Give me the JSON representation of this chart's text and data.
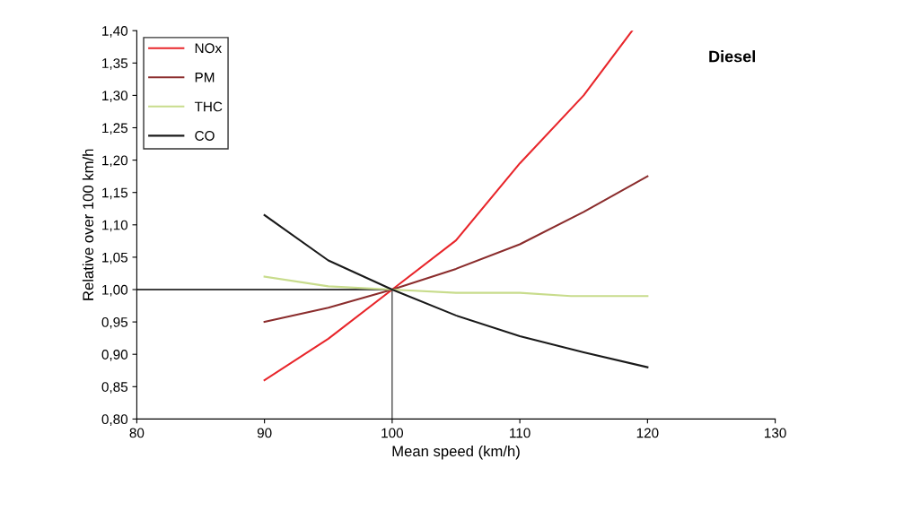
{
  "chart_data": {
    "type": "line",
    "xlabel": "Mean speed (km/h)",
    "ylabel": "Relative over 100 km/h",
    "annotations": [
      "Diesel"
    ],
    "xlim": [
      80,
      130
    ],
    "xticks": [
      80,
      90,
      100,
      110,
      120,
      130
    ],
    "ylim": [
      0.8,
      1.4
    ],
    "yticks": [
      {
        "value": 0.8,
        "label": "0,80"
      },
      {
        "value": 0.85,
        "label": "0,85"
      },
      {
        "value": 0.9,
        "label": "0,90"
      },
      {
        "value": 0.95,
        "label": "0,95"
      },
      {
        "value": 1.0,
        "label": "1,00"
      },
      {
        "value": 1.05,
        "label": "1,05"
      },
      {
        "value": 1.1,
        "label": "1,10"
      },
      {
        "value": 1.15,
        "label": "1,15"
      },
      {
        "value": 1.2,
        "label": "1,20"
      },
      {
        "value": 1.25,
        "label": "1,25"
      },
      {
        "value": 1.3,
        "label": "1,30"
      },
      {
        "value": 1.35,
        "label": "1,35"
      },
      {
        "value": 1.4,
        "label": "1,40"
      }
    ],
    "series": [
      {
        "name": "NOx",
        "color": "#e8262b",
        "x": [
          90,
          95,
          100,
          105,
          110,
          115,
          118.8
        ],
        "values": [
          0.86,
          0.924,
          1.0,
          1.076,
          1.195,
          1.3,
          1.4
        ]
      },
      {
        "name": "PM",
        "color": "#8b2d2d",
        "x": [
          90,
          95,
          100,
          105,
          110,
          115,
          120
        ],
        "values": [
          0.95,
          0.972,
          1.0,
          1.032,
          1.07,
          1.12,
          1.175
        ]
      },
      {
        "name": "THC",
        "color": "#c8dc8c",
        "x": [
          90,
          95,
          100,
          105,
          110,
          114,
          120
        ],
        "values": [
          1.02,
          1.005,
          1.0,
          0.995,
          0.995,
          0.99,
          0.99
        ]
      },
      {
        "name": "CO",
        "color": "#1a1a1a",
        "x": [
          90,
          95,
          100,
          105,
          110,
          115,
          120
        ],
        "values": [
          1.115,
          1.045,
          1.0,
          0.96,
          0.928,
          0.903,
          0.88
        ]
      }
    ],
    "ref_lines": [
      {
        "axis": "y",
        "value": 1.0,
        "color": "#000000"
      },
      {
        "axis": "x",
        "value": 100,
        "color": "#000000"
      }
    ],
    "legend": "top left",
    "grid": false,
    "marker": "none",
    "line_style": "solid"
  }
}
